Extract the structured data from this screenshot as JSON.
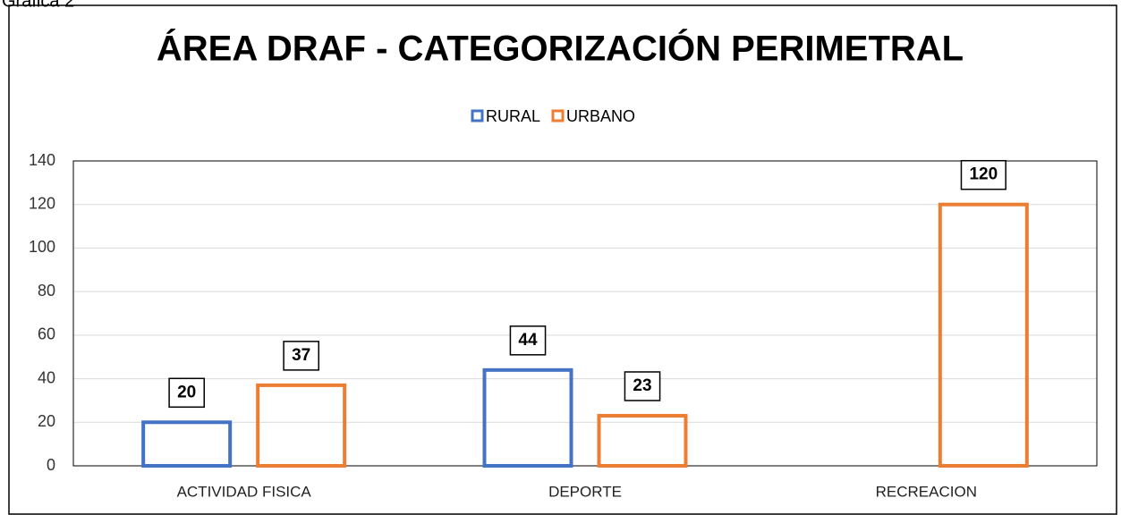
{
  "caption": "Gráfica 2",
  "chart_data": {
    "type": "bar",
    "title": "ÁREA DRAF - CATEGORIZACIÓN PERIMETRAL",
    "categories": [
      "ACTIVIDAD FISICA",
      "DEPORTE",
      "RECREACION"
    ],
    "series": [
      {
        "name": "RURAL",
        "color": "#4472c4",
        "values": [
          20,
          44,
          null
        ]
      },
      {
        "name": "URBANO",
        "color": "#ed7d31",
        "values": [
          37,
          23,
          120
        ]
      }
    ],
    "ylim": [
      0,
      140
    ],
    "yticks": [
      0,
      20,
      40,
      60,
      80,
      100,
      120,
      140
    ],
    "grid": true,
    "legend": "top"
  }
}
